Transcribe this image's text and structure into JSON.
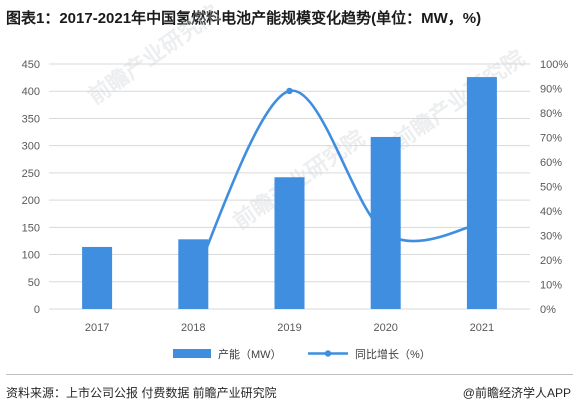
{
  "title": "图表1：2017-2021年中国氢燃料电池产能规模变化趋势(单位：MW，%)",
  "source": "资料来源：上市公司公报 付费数据 前瞻产业研究院",
  "credit": "@前瞻经济学人APP",
  "watermark": "前瞻产业研究院",
  "colors": {
    "bar": "#3f8ee0",
    "line": "#3f8ee0",
    "grid": "#d9d9d9",
    "axis_text": "#595959"
  },
  "chart_data": {
    "type": "bar",
    "categories": [
      "2017",
      "2018",
      "2019",
      "2020",
      "2021"
    ],
    "series": [
      {
        "name": "产能（MW）",
        "type": "bar",
        "axis": "left",
        "values": [
          114,
          128,
          242,
          316,
          426
        ]
      },
      {
        "name": "同比增长（%）",
        "type": "line",
        "axis": "right",
        "values": [
          null,
          12,
          89,
          31,
          35
        ]
      }
    ],
    "ylim": [
      0,
      450
    ],
    "yticks": [
      0,
      50,
      100,
      150,
      200,
      250,
      300,
      350,
      400,
      450
    ],
    "y2lim": [
      0,
      100
    ],
    "y2ticks": [
      "0%",
      "10%",
      "20%",
      "30%",
      "40%",
      "50%",
      "60%",
      "70%",
      "80%",
      "90%",
      "100%"
    ],
    "grid": true,
    "legend_position": "bottom"
  }
}
